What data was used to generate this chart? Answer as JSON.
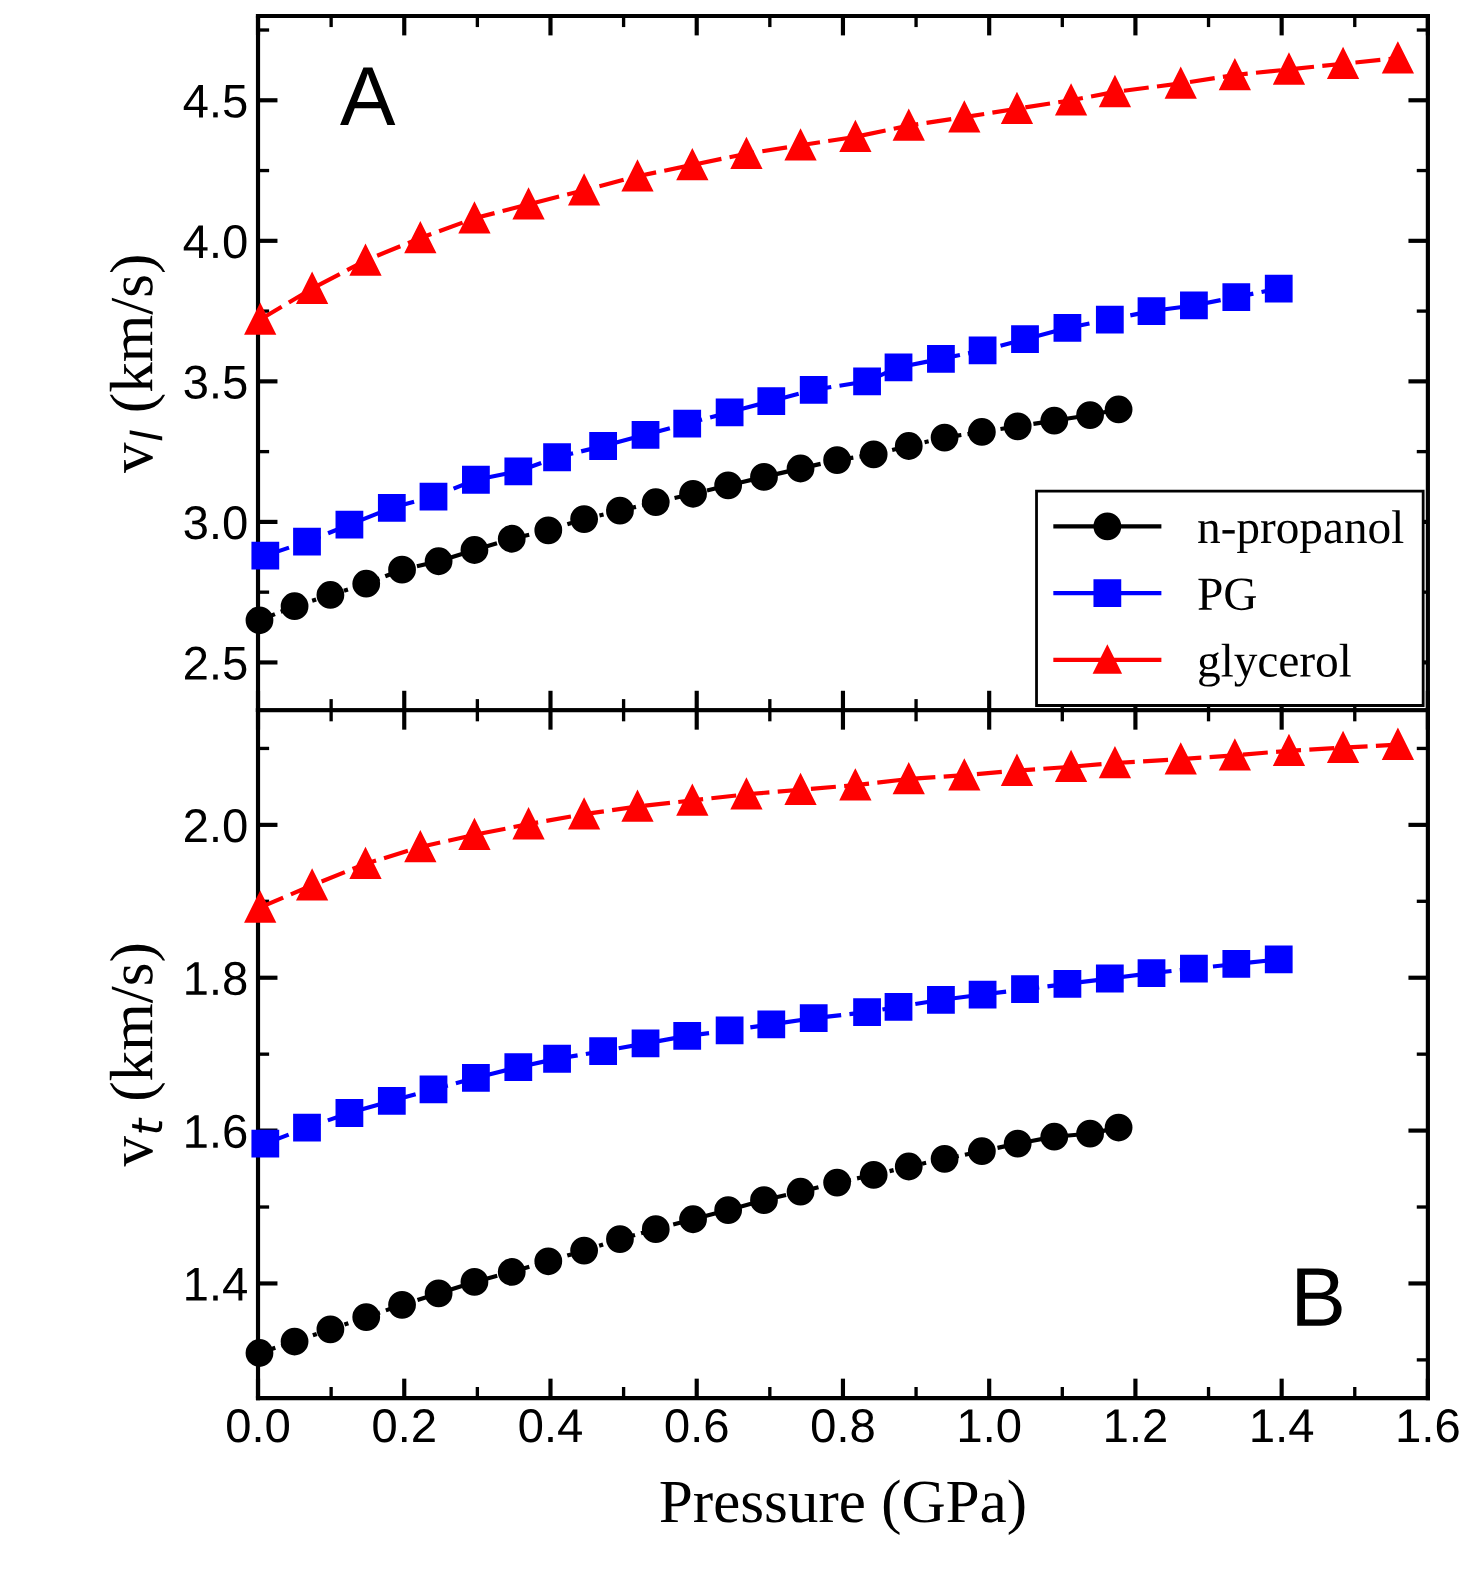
{
  "chart_data": [
    {
      "type": "line",
      "ylabel": "v$_{l}$ (km/s)",
      "annotations": [
        "A"
      ],
      "xlim": [
        0,
        1.6
      ],
      "xticks": [
        0,
        0.2,
        0.4,
        0.6,
        0.8,
        1,
        1.2,
        1.4,
        1.6
      ],
      "ylim": [
        2.33,
        4.8
      ],
      "yticks": [
        2.5,
        {
          "value": 3,
          "label": "3.0"
        },
        3.5,
        {
          "value": 4,
          "label": "4.0"
        },
        4.5
      ],
      "tick_labels": "y",
      "grid": false,
      "legend": "bottom right",
      "series": [
        {
          "name": "n-propanol",
          "color": "#000000",
          "marker": "circle",
          "line_style": "dashdot",
          "x": [
            0.002,
            0.05,
            0.099,
            0.148,
            0.197,
            0.247,
            0.296,
            0.347,
            0.397,
            0.446,
            0.495,
            0.544,
            0.595,
            0.643,
            0.692,
            0.742,
            0.792,
            0.842,
            0.89,
            0.939,
            0.99,
            1.039,
            1.089,
            1.138,
            1.177
          ],
          "values": [
            2.65,
            2.7,
            2.74,
            2.78,
            2.83,
            2.86,
            2.9,
            2.94,
            2.97,
            3.01,
            3.04,
            3.07,
            3.1,
            3.13,
            3.16,
            3.19,
            3.22,
            3.24,
            3.27,
            3.3,
            3.32,
            3.34,
            3.36,
            3.38,
            3.4
          ]
        },
        {
          "name": "PG",
          "color": "#0000ff",
          "marker": "square",
          "line_style": "dashed",
          "x": [
            0.01,
            0.067,
            0.125,
            0.183,
            0.24,
            0.298,
            0.356,
            0.409,
            0.472,
            0.53,
            0.587,
            0.645,
            0.702,
            0.76,
            0.833,
            0.876,
            0.934,
            0.991,
            1.049,
            1.107,
            1.165,
            1.222,
            1.28,
            1.338,
            1.396
          ],
          "values": [
            2.88,
            2.93,
            2.99,
            3.05,
            3.09,
            3.15,
            3.18,
            3.23,
            3.27,
            3.31,
            3.35,
            3.39,
            3.43,
            3.47,
            3.5,
            3.55,
            3.58,
            3.61,
            3.65,
            3.69,
            3.72,
            3.75,
            3.77,
            3.8,
            3.83
          ]
        },
        {
          "name": "glycerol",
          "color": "#ff0000",
          "marker": "triangle",
          "line_style": "dashed",
          "x": [
            0.003,
            0.074,
            0.147,
            0.222,
            0.296,
            0.37,
            0.446,
            0.519,
            0.594,
            0.668,
            0.742,
            0.817,
            0.89,
            0.966,
            1.038,
            1.112,
            1.172,
            1.262,
            1.336,
            1.41,
            1.484,
            1.559
          ],
          "values": [
            3.72,
            3.83,
            3.93,
            4.01,
            4.08,
            4.13,
            4.18,
            4.23,
            4.27,
            4.31,
            4.34,
            4.37,
            4.41,
            4.44,
            4.47,
            4.5,
            4.53,
            4.56,
            4.59,
            4.61,
            4.63,
            4.65
          ]
        }
      ]
    },
    {
      "type": "line",
      "xlabel": "Pressure (GPa)",
      "ylabel": "v$_{t}$ (km/s)",
      "annotations": [
        "B"
      ],
      "xlim": [
        0,
        1.6
      ],
      "xticks": [
        {
          "value": 0,
          "label": "0.0"
        },
        0.2,
        0.4,
        0.6,
        0.8,
        {
          "value": 1,
          "label": "1.0"
        },
        1.2,
        1.4,
        1.6
      ],
      "ylim": [
        1.25,
        2.15
      ],
      "yticks": [
        1.4,
        1.6,
        1.8,
        {
          "value": 2,
          "label": "2.0"
        }
      ],
      "grid": false,
      "legend": false,
      "series": [
        {
          "color": "#000000",
          "marker": "circle",
          "line_style": "dashdot",
          "x": [
            0.002,
            0.05,
            0.099,
            0.148,
            0.197,
            0.247,
            0.296,
            0.347,
            0.397,
            0.446,
            0.495,
            0.544,
            0.595,
            0.643,
            0.692,
            0.742,
            0.792,
            0.842,
            0.89,
            0.939,
            0.99,
            1.039,
            1.089,
            1.138,
            1.177
          ],
          "values": [
            1.309,
            1.324,
            1.34,
            1.356,
            1.372,
            1.387,
            1.402,
            1.415,
            1.429,
            1.443,
            1.458,
            1.471,
            1.484,
            1.496,
            1.509,
            1.52,
            1.532,
            1.542,
            1.553,
            1.563,
            1.573,
            1.583,
            1.592,
            1.596,
            1.604
          ]
        },
        {
          "color": "#0000ff",
          "marker": "square",
          "line_style": "dashed",
          "x": [
            0.01,
            0.067,
            0.125,
            0.183,
            0.24,
            0.298,
            0.356,
            0.409,
            0.472,
            0.53,
            0.587,
            0.645,
            0.702,
            0.76,
            0.833,
            0.876,
            0.934,
            0.991,
            1.049,
            1.107,
            1.165,
            1.222,
            1.28,
            1.338,
            1.396
          ],
          "values": [
            1.583,
            1.604,
            1.623,
            1.639,
            1.654,
            1.669,
            1.683,
            1.694,
            1.704,
            1.714,
            1.724,
            1.731,
            1.739,
            1.747,
            1.755,
            1.762,
            1.771,
            1.778,
            1.785,
            1.792,
            1.799,
            1.806,
            1.812,
            1.818,
            1.824
          ]
        },
        {
          "color": "#ff0000",
          "marker": "triangle",
          "line_style": "dashed",
          "x": [
            0.003,
            0.074,
            0.147,
            0.222,
            0.296,
            0.37,
            0.446,
            0.519,
            0.594,
            0.668,
            0.742,
            0.817,
            0.89,
            0.966,
            1.038,
            1.112,
            1.172,
            1.262,
            1.336,
            1.41,
            1.484,
            1.559
          ],
          "values": [
            1.892,
            1.921,
            1.949,
            1.971,
            1.987,
            2.001,
            2.014,
            2.024,
            2.032,
            2.04,
            2.046,
            2.052,
            2.06,
            2.065,
            2.071,
            2.076,
            2.081,
            2.086,
            2.091,
            2.097,
            2.101,
            2.105
          ]
        }
      ]
    }
  ]
}
